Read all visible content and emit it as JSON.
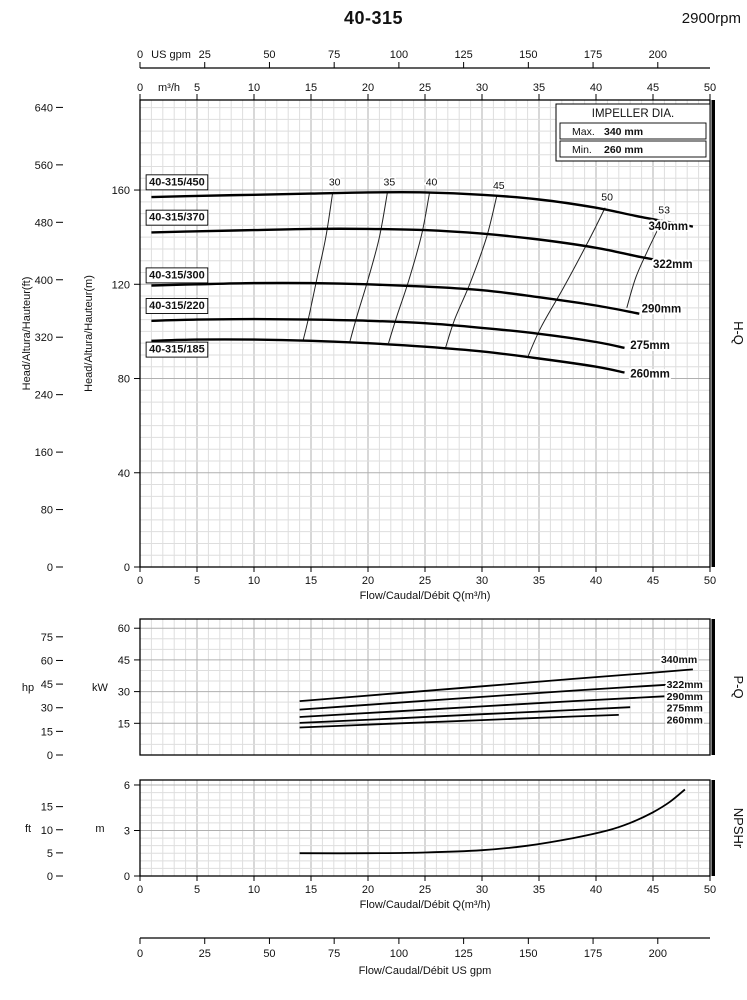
{
  "header": {
    "title": "40-315",
    "rpm": "2900rpm"
  },
  "side_labels": {
    "hq": "H-Q",
    "pq": "P-Q",
    "npsh": "NPSHr"
  },
  "chart_data": {
    "hq": {
      "type": "line",
      "x": {
        "label": "Flow/Caudal/Débit Q(m³/h)",
        "min": 0,
        "max": 50,
        "ticks": [
          0,
          5,
          10,
          15,
          20,
          25,
          30,
          35,
          40,
          45,
          50
        ]
      },
      "y_m": {
        "label": "Head/Altura/Hauteur(m)",
        "min": 0,
        "max": 198,
        "ticks": [
          0,
          40,
          80,
          120,
          160
        ]
      },
      "y_ft": {
        "label": "Head/Altura/Hauteur(ft)",
        "ticks": [
          0,
          80,
          160,
          240,
          320,
          400,
          480,
          560,
          640
        ],
        "m_per_ft": 0.3048
      },
      "top_gpm": {
        "label": "US gpm",
        "ticks": [
          0,
          25,
          50,
          75,
          100,
          125,
          150,
          175,
          200
        ],
        "m3h_per_gpm": 0.2271
      },
      "top_m3h": {
        "label": "m³/h",
        "ticks": [
          0,
          5,
          10,
          15,
          20,
          25,
          30,
          35,
          40,
          45,
          50
        ]
      },
      "legend": {
        "title": "IMPELLER DIA.",
        "rows": [
          {
            "label": "Max.",
            "value": "340 mm"
          },
          {
            "label": "Min.",
            "value": "260 mm"
          }
        ]
      },
      "series": [
        {
          "name": "40-315/450",
          "impeller": "340mm",
          "label_pos": [
            0.8,
            162
          ],
          "end_label_pos": [
            44.6,
            143
          ],
          "points": [
            [
              1,
              157
            ],
            [
              5,
              157.5
            ],
            [
              10,
              158
            ],
            [
              15,
              158.5
            ],
            [
              20,
              159
            ],
            [
              25,
              159
            ],
            [
              30,
              158
            ],
            [
              35,
              156
            ],
            [
              40,
              152.5
            ],
            [
              44,
              148.5
            ],
            [
              48.5,
              144.5
            ]
          ]
        },
        {
          "name": "40-315/370",
          "impeller": "322mm",
          "label_pos": [
            0.8,
            147
          ],
          "end_label_pos": [
            45,
            127
          ],
          "points": [
            [
              1,
              142
            ],
            [
              5,
              142.5
            ],
            [
              10,
              143
            ],
            [
              15,
              143.5
            ],
            [
              20,
              143.5
            ],
            [
              25,
              143
            ],
            [
              30,
              141.5
            ],
            [
              35,
              139
            ],
            [
              40,
              135.5
            ],
            [
              44,
              131.5
            ],
            [
              48.5,
              127.5
            ]
          ]
        },
        {
          "name": "40-315/300",
          "impeller": "290mm",
          "label_pos": [
            0.8,
            122.5
          ],
          "end_label_pos": [
            44,
            108
          ],
          "points": [
            [
              1,
              119.5
            ],
            [
              5,
              120
            ],
            [
              10,
              120.5
            ],
            [
              15,
              120.5
            ],
            [
              20,
              120
            ],
            [
              25,
              119
            ],
            [
              30,
              117.5
            ],
            [
              35,
              114.5
            ],
            [
              40,
              111
            ],
            [
              43.8,
              107.5
            ]
          ]
        },
        {
          "name": "40-315/220",
          "impeller": "275mm",
          "label_pos": [
            0.8,
            109.5
          ],
          "end_label_pos": [
            43,
            92.5
          ],
          "points": [
            [
              1,
              104.5
            ],
            [
              5,
              105
            ],
            [
              10,
              105.2
            ],
            [
              15,
              105
            ],
            [
              20,
              104.5
            ],
            [
              25,
              103.5
            ],
            [
              30,
              101.5
            ],
            [
              35,
              99
            ],
            [
              40,
              95.5
            ],
            [
              42.5,
              93
            ]
          ]
        },
        {
          "name": "40-315/185",
          "impeller": "260mm",
          "label_pos": [
            0.8,
            91
          ],
          "end_label_pos": [
            43,
            80.5
          ],
          "points": [
            [
              1,
              96
            ],
            [
              5,
              96.5
            ],
            [
              10,
              96.5
            ],
            [
              15,
              96
            ],
            [
              20,
              95
            ],
            [
              25,
              93.5
            ],
            [
              30,
              91.5
            ],
            [
              35,
              88.5
            ],
            [
              40,
              85
            ],
            [
              42.5,
              82.5
            ]
          ]
        }
      ],
      "efficiency": [
        {
          "label": "30",
          "points": [
            [
              16.9,
              159
            ],
            [
              16.3,
              140
            ],
            [
              15.5,
              122
            ],
            [
              14.8,
              106
            ],
            [
              14.3,
              96
            ]
          ]
        },
        {
          "label": "35",
          "points": [
            [
              21.7,
              159
            ],
            [
              21,
              140
            ],
            [
              20,
              122
            ],
            [
              19,
              106
            ],
            [
              18.4,
              95.5
            ]
          ]
        },
        {
          "label": "40",
          "points": [
            [
              25.4,
              159
            ],
            [
              24.7,
              141
            ],
            [
              23.6,
              122
            ],
            [
              22.5,
              106
            ],
            [
              21.8,
              95
            ]
          ]
        },
        {
          "label": "45",
          "points": [
            [
              31.3,
              157.5
            ],
            [
              30.4,
              140
            ],
            [
              29,
              121
            ],
            [
              27.6,
              105
            ],
            [
              26.8,
              93
            ]
          ]
        },
        {
          "label": "50",
          "points": [
            [
              40.8,
              152.5
            ],
            [
              39.3,
              138
            ],
            [
              37.2,
              119
            ],
            [
              35.2,
              102
            ],
            [
              34,
              89
            ]
          ]
        },
        {
          "label": "53",
          "points": [
            [
              45.8,
              147
            ],
            [
              44.6,
              135
            ],
            [
              43.5,
              123
            ],
            [
              42.7,
              110
            ]
          ]
        }
      ]
    },
    "pq": {
      "type": "line",
      "y_kw": {
        "label": "kW",
        "ticks": [
          15,
          30,
          45,
          60
        ]
      },
      "y_hp": {
        "label": "hp",
        "ticks": [
          0,
          15,
          30,
          45,
          60,
          75
        ],
        "kw_per_hp": 0.7457
      },
      "series": [
        {
          "name": "340mm",
          "label_pos": [
            45.7,
            43.5
          ],
          "points": [
            [
              14,
              25.5
            ],
            [
              22,
              29
            ],
            [
              30,
              32.5
            ],
            [
              38,
              36
            ],
            [
              44,
              38.5
            ],
            [
              48.5,
              40.5
            ]
          ]
        },
        {
          "name": "322mm",
          "label_pos": [
            46.2,
            31.8
          ],
          "points": [
            [
              14,
              21.5
            ],
            [
              22,
              24.5
            ],
            [
              30,
              27.5
            ],
            [
              38,
              30.5
            ],
            [
              44,
              32.5
            ],
            [
              48.5,
              34
            ]
          ]
        },
        {
          "name": "290mm",
          "label_pos": [
            46.2,
            26
          ],
          "points": [
            [
              14,
              18
            ],
            [
              22,
              20.5
            ],
            [
              30,
              23
            ],
            [
              38,
              25.5
            ],
            [
              44,
              27.2
            ],
            [
              46,
              27.8
            ]
          ]
        },
        {
          "name": "275mm",
          "label_pos": [
            46.2,
            20.5
          ],
          "points": [
            [
              14,
              15.2
            ],
            [
              22,
              17.2
            ],
            [
              30,
              19.3
            ],
            [
              38,
              21.3
            ],
            [
              43,
              22.6
            ]
          ]
        },
        {
          "name": "260mm",
          "label_pos": [
            46.2,
            15
          ],
          "points": [
            [
              14,
              13
            ],
            [
              22,
              14.8
            ],
            [
              30,
              16.5
            ],
            [
              38,
              18.2
            ],
            [
              42,
              19
            ]
          ]
        }
      ]
    },
    "npsh": {
      "type": "line",
      "x": {
        "label": "Flow/Caudal/Débit Q(m³/h)",
        "ticks": [
          0,
          5,
          10,
          15,
          20,
          25,
          30,
          35,
          40,
          45,
          50
        ]
      },
      "y_m": {
        "label": "m",
        "ticks": [
          0,
          3,
          6
        ]
      },
      "y_ft": {
        "label": "ft",
        "ticks": [
          0,
          5,
          10,
          15
        ],
        "m_per_ft": 0.3048
      },
      "series": [
        {
          "name": "NPSHr",
          "points": [
            [
              14,
              1.5
            ],
            [
              20,
              1.5
            ],
            [
              25,
              1.55
            ],
            [
              30,
              1.7
            ],
            [
              34,
              2
            ],
            [
              38,
              2.5
            ],
            [
              41,
              3
            ],
            [
              43,
              3.5
            ],
            [
              45,
              4.2
            ],
            [
              46.5,
              4.9
            ],
            [
              47.8,
              5.7
            ]
          ]
        }
      ]
    },
    "bottom_gpm": {
      "label": "Flow/Caudal/Débit  US gpm",
      "ticks": [
        0,
        25,
        50,
        75,
        100,
        125,
        150,
        175,
        200
      ],
      "m3h_per_gpm": 0.2271
    }
  }
}
